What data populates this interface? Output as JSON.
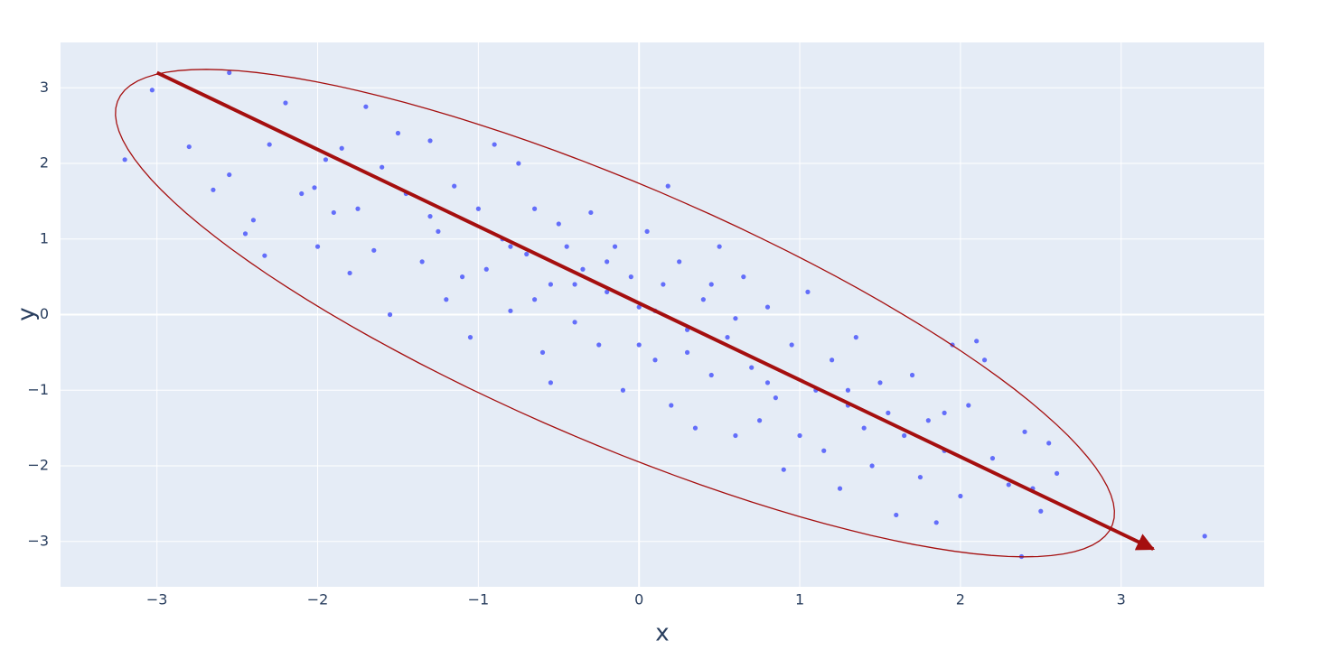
{
  "chart_data": {
    "type": "scatter",
    "x_label": "x",
    "y_label": "y",
    "x": [
      -3.2,
      -3.03,
      -2.8,
      -2.55,
      -2.65,
      -2.55,
      -2.4,
      -2.45,
      -2.33,
      -2.2,
      -2.3,
      -2.1,
      -2.02,
      -2.0,
      -1.95,
      -1.85,
      -1.8,
      -1.75,
      -1.7,
      -1.65,
      -1.6,
      -1.55,
      -1.5,
      -1.45,
      -1.35,
      -1.3,
      -1.25,
      -1.2,
      -1.15,
      -1.1,
      -1.05,
      -1.0,
      -0.95,
      -0.9,
      -0.85,
      -0.8,
      -0.75,
      -0.7,
      -0.65,
      -0.6,
      -0.55,
      -0.5,
      -0.45,
      -0.4,
      -0.35,
      -0.3,
      -0.25,
      -0.2,
      -0.15,
      -0.1,
      -0.05,
      0.0,
      0.05,
      0.1,
      0.15,
      0.2,
      0.25,
      0.3,
      0.35,
      0.4,
      0.45,
      0.5,
      0.55,
      0.6,
      0.65,
      0.7,
      0.75,
      0.8,
      0.85,
      0.9,
      0.95,
      1.0,
      1.05,
      1.1,
      1.15,
      1.2,
      1.25,
      1.3,
      1.35,
      1.4,
      1.45,
      1.5,
      1.55,
      1.6,
      1.65,
      1.7,
      1.75,
      1.8,
      1.85,
      1.9,
      1.95,
      2.0,
      2.05,
      2.1,
      2.15,
      2.2,
      2.3,
      2.38,
      2.4,
      2.45,
      2.5,
      2.55,
      2.6,
      3.52,
      0.18,
      -0.55,
      0.6,
      -0.2,
      0.1,
      -0.4,
      0.3,
      -0.8,
      0.8,
      -1.3,
      1.3,
      0.45,
      -0.65,
      0.0,
      -1.9,
      1.9
    ],
    "y": [
      2.05,
      2.97,
      2.22,
      3.2,
      1.65,
      1.85,
      1.25,
      1.07,
      0.78,
      2.8,
      2.25,
      1.6,
      1.68,
      0.9,
      2.05,
      2.2,
      0.55,
      1.4,
      2.75,
      0.85,
      1.95,
      0.0,
      2.4,
      1.6,
      0.7,
      2.3,
      1.1,
      0.2,
      1.7,
      0.5,
      -0.3,
      1.4,
      0.6,
      2.25,
      1.0,
      0.05,
      2.0,
      0.8,
      1.4,
      -0.5,
      0.4,
      1.2,
      0.9,
      -0.1,
      0.6,
      1.35,
      -0.4,
      0.3,
      0.9,
      -1.0,
      0.5,
      0.1,
      1.1,
      -0.6,
      0.4,
      -1.2,
      0.7,
      -0.2,
      -1.5,
      0.2,
      -0.8,
      0.9,
      -0.3,
      -1.6,
      0.5,
      -0.7,
      -1.4,
      0.1,
      -1.1,
      -2.05,
      -0.4,
      -1.6,
      0.3,
      -1.0,
      -1.8,
      -0.6,
      -2.3,
      -1.2,
      -0.3,
      -1.5,
      -2.0,
      -0.9,
      -1.3,
      -2.65,
      -1.6,
      -0.8,
      -2.15,
      -1.4,
      -2.75,
      -1.8,
      -0.4,
      -2.4,
      -1.2,
      -0.35,
      -0.6,
      -1.9,
      -2.25,
      -3.2,
      -1.55,
      -2.3,
      -2.6,
      -1.7,
      -2.1,
      -2.93,
      1.7,
      -0.9,
      -0.05,
      0.7,
      0.05,
      0.4,
      -0.5,
      0.9,
      -0.9,
      1.3,
      -1.0,
      0.4,
      0.2,
      -0.4,
      1.35,
      -1.3
    ],
    "color": "#636efa",
    "xlim": [
      -3.6,
      3.89
    ],
    "ylim": [
      -3.6,
      3.6
    ],
    "xticks": [
      {
        "value": -3,
        "label": "−3"
      },
      {
        "value": -2,
        "label": "−2"
      },
      {
        "value": -1,
        "label": "−1"
      },
      0,
      1,
      2,
      3
    ],
    "yticks": [
      {
        "value": -3,
        "label": "−3"
      },
      {
        "value": -2,
        "label": "−2"
      },
      {
        "value": -1,
        "label": "−1"
      },
      0,
      1,
      2,
      3
    ],
    "grid": true,
    "arrow": {
      "x": [
        -3.0,
        3.2
      ],
      "y": [
        3.2,
        -3.1
      ],
      "color": "#a50f0f"
    },
    "ellipse": {
      "center": [
        -0.15,
        0.02
      ],
      "axis1": [
        3.05,
        -2.95
      ],
      "axis2": [
        0.6,
        1.3
      ],
      "color": "#a50f0f"
    }
  }
}
